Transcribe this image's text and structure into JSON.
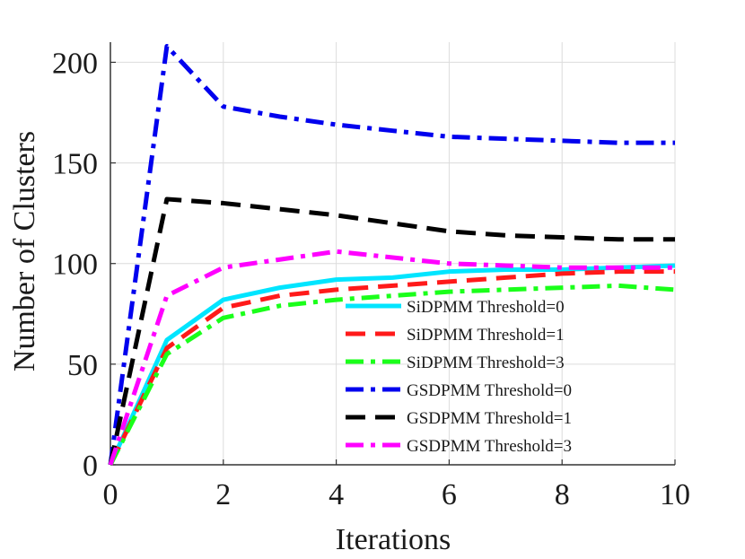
{
  "chart_data": {
    "type": "line",
    "title": "",
    "xlabel": "Iterations",
    "ylabel": "Number of Clusters",
    "xlim": [
      0,
      10
    ],
    "ylim": [
      0,
      210
    ],
    "xticks": [
      0,
      2,
      4,
      6,
      8,
      10
    ],
    "yticks": [
      0,
      50,
      100,
      150,
      200
    ],
    "grid": true,
    "legend_position": "bottom-right",
    "x": [
      0,
      1,
      2,
      3,
      4,
      5,
      6,
      7,
      8,
      9,
      10
    ],
    "series": [
      {
        "name": "SiDPMM Threshold=0",
        "color": "#00e5ff",
        "dash": "solid",
        "values": [
          0,
          62,
          82,
          88,
          92,
          93,
          96,
          97,
          97,
          98,
          99
        ]
      },
      {
        "name": "SiDPMM Threshold=1",
        "color": "#ff1a1a",
        "dash": "dash",
        "values": [
          0,
          58,
          78,
          84,
          87,
          89,
          91,
          93,
          95,
          96,
          96
        ]
      },
      {
        "name": "SiDPMM Threshold=3",
        "color": "#1aff1a",
        "dash": "dashdot",
        "values": [
          0,
          55,
          73,
          79,
          82,
          84,
          86,
          87,
          88,
          89,
          87
        ]
      },
      {
        "name": "GSDPMM Threshold=0",
        "color": "#0000ee",
        "dash": "dashdot",
        "values": [
          0,
          208,
          178,
          173,
          169,
          166,
          163,
          162,
          161,
          160,
          160
        ]
      },
      {
        "name": "GSDPMM Threshold=1",
        "color": "#000000",
        "dash": "dash",
        "values": [
          0,
          132,
          130,
          127,
          124,
          120,
          116,
          114,
          113,
          112,
          112
        ]
      },
      {
        "name": "GSDPMM Threshold=3",
        "color": "#ff00ff",
        "dash": "dashdot",
        "values": [
          0,
          84,
          98,
          102,
          106,
          103,
          100,
          99,
          98,
          98,
          98
        ]
      }
    ]
  }
}
